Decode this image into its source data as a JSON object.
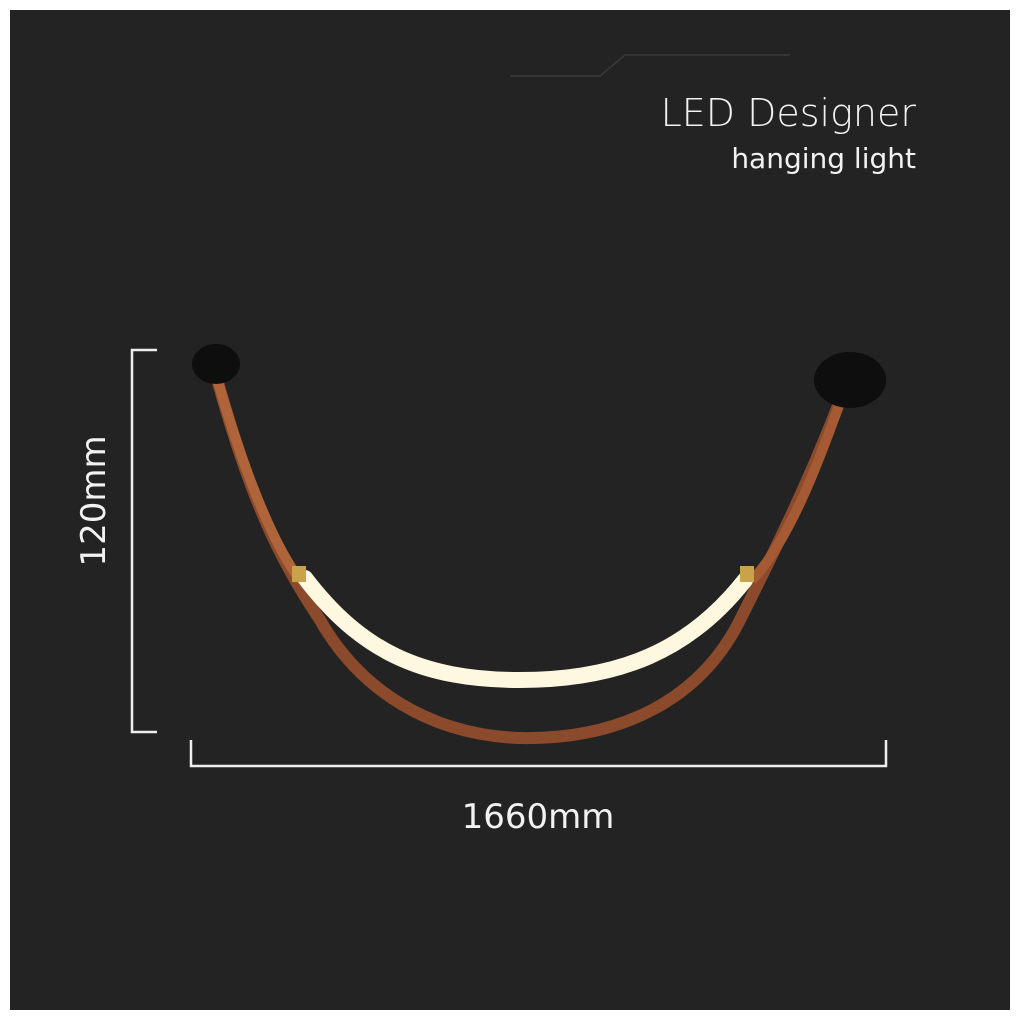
{
  "header": {
    "title": "LED Designer",
    "subtitle": "hanging light"
  },
  "dimensions": {
    "height": "120mm",
    "width": "1660mm"
  }
}
